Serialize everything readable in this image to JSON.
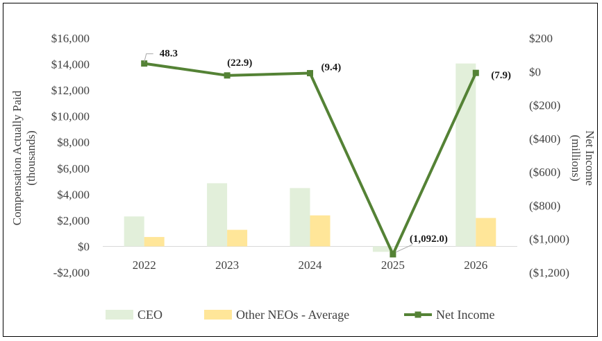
{
  "chart_data": {
    "type": "bar+line",
    "categories": [
      "2022",
      "2023",
      "2024",
      "2025",
      "2026"
    ],
    "series": [
      {
        "name": "CEO",
        "type": "bar",
        "axis": "left",
        "color": "#e2efda",
        "values": [
          2300,
          4850,
          4480,
          -420,
          14050
        ]
      },
      {
        "name": "Other NEOs - Average",
        "type": "bar",
        "axis": "left",
        "color": "#ffe699",
        "values": [
          720,
          1270,
          2380,
          0,
          2180
        ]
      },
      {
        "name": "Net Income",
        "type": "line",
        "axis": "right",
        "color": "#548235",
        "values": [
          48.3,
          -22.9,
          -9.4,
          -1092.0,
          -7.9
        ],
        "labels": [
          "48.3",
          "(22.9)",
          "(9.4)",
          "(1,092.0)",
          "(7.9)"
        ]
      }
    ],
    "left_axis": {
      "title_line1": "Compensation Actually Paid",
      "title_line2": "(thousands)",
      "ylim": [
        -2000,
        16000
      ],
      "ticks": [
        16000,
        14000,
        12000,
        10000,
        8000,
        6000,
        4000,
        2000,
        0,
        -2000
      ],
      "tick_labels": [
        "$16,000",
        "$14,000",
        "$12,000",
        "$10,000",
        "$8,000",
        "$6,000",
        "$4,000",
        "$2,000",
        "$0",
        "-$2,000"
      ]
    },
    "right_axis": {
      "title_line1": "Net Income",
      "title_line2": "(millions)",
      "ylim": [
        -1200,
        200
      ],
      "ticks": [
        200,
        0,
        -200,
        -400,
        -600,
        -800,
        -1000,
        -1200
      ],
      "tick_labels": [
        "$200",
        "$0",
        "($200)",
        "($400)",
        "($600)",
        "($800)",
        "($1,000)",
        "($1,200)"
      ]
    },
    "legend": {
      "placement": "bottom",
      "items": [
        "CEO",
        "Other NEOs - Average",
        "Net Income"
      ]
    },
    "grid": false
  }
}
